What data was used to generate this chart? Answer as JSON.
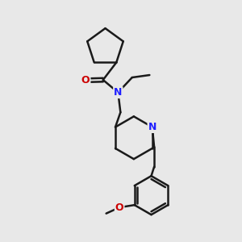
{
  "background_color": "#e8e8e8",
  "bond_color": "#1a1a1a",
  "bond_width": 1.8,
  "atom_colors": {
    "N": "#2020ff",
    "O": "#cc0000",
    "C": "#1a1a1a"
  },
  "figsize": [
    3.0,
    3.0
  ],
  "dpi": 100
}
